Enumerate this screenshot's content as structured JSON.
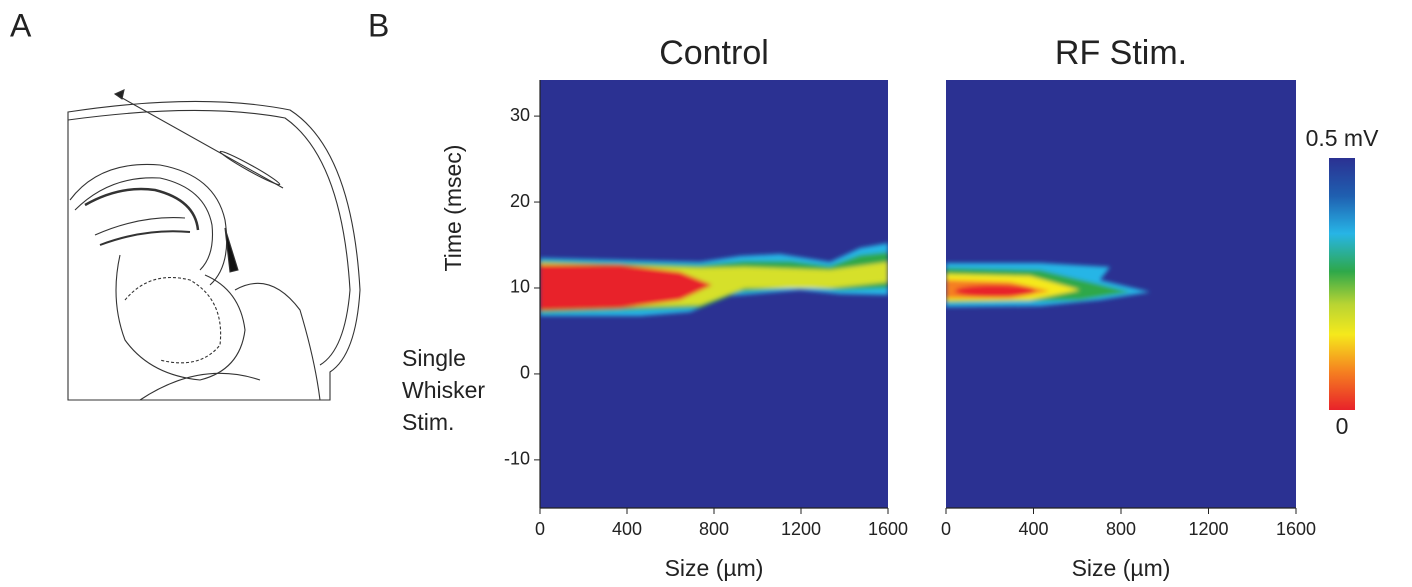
{
  "panels": {
    "a": {
      "label": "A"
    },
    "b": {
      "label": "B"
    }
  },
  "chart_data": [
    {
      "type": "heatmap",
      "title": "Control",
      "x_label": "Size (µm)",
      "y_label": "Time (msec)",
      "xlim": [
        0,
        1600
      ],
      "xticks": [
        0,
        400,
        800,
        1200,
        1600
      ],
      "ylim": [
        -15.6,
        34.2
      ],
      "yticks": [
        -10,
        0,
        10,
        20,
        30
      ],
      "annotation": [
        "Single",
        "Whisker",
        "Stim."
      ]
    },
    {
      "type": "heatmap",
      "title": "RF Stim.",
      "x_label": "Size (µm)",
      "xlim": [
        0,
        1600
      ],
      "xticks": [
        0,
        400,
        800,
        1200,
        1600
      ],
      "ylim": [
        -15.6,
        34.2
      ],
      "colorbar_ticks": [
        {
          "value": 0.5,
          "label": "0.5 mV"
        },
        0
      ]
    }
  ]
}
